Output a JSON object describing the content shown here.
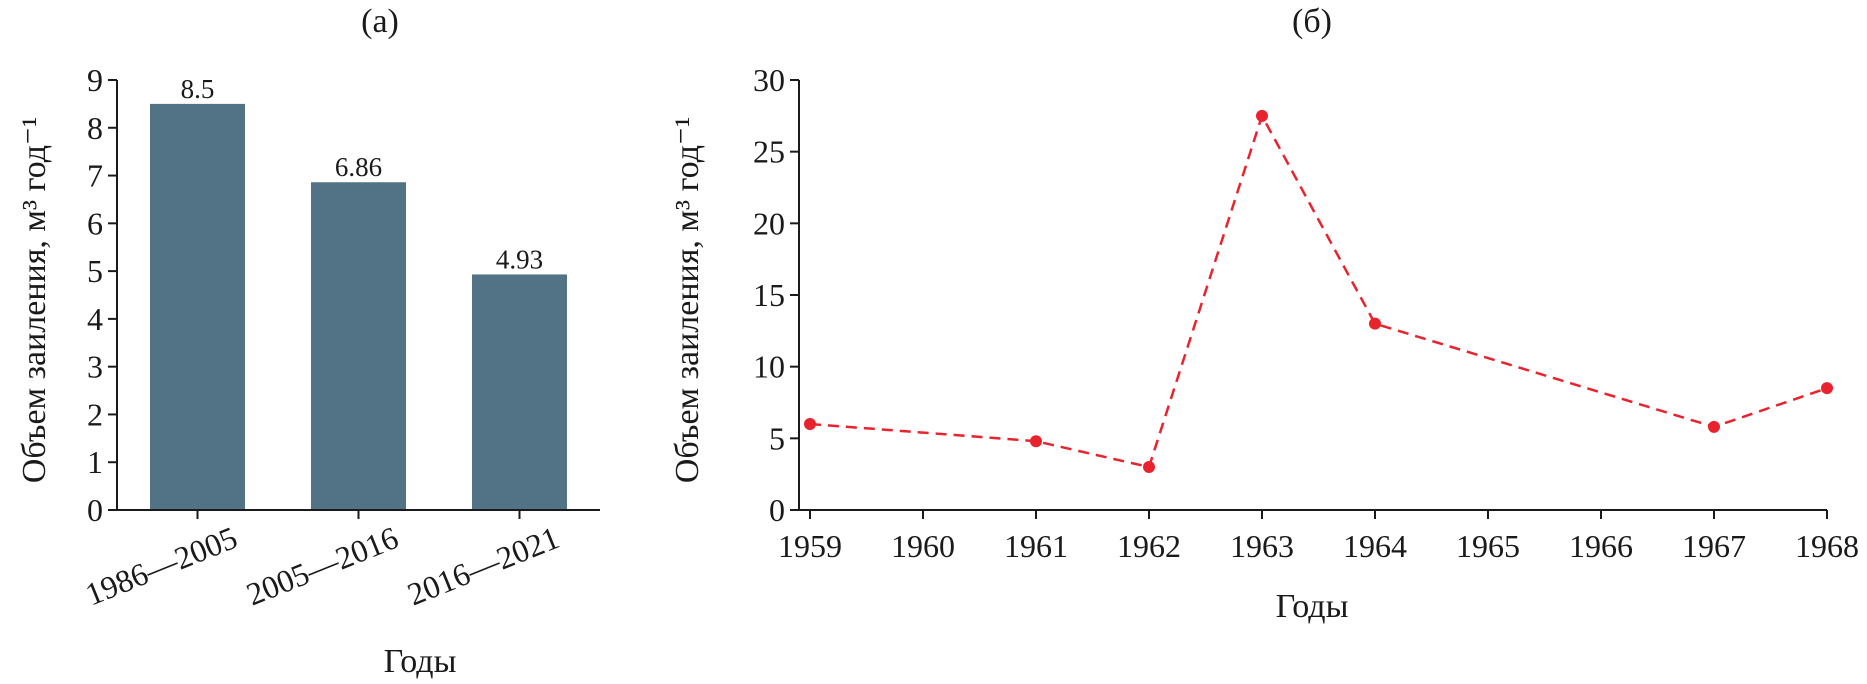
{
  "chart_data": [
    {
      "type": "bar",
      "panel_label": "(а)",
      "title": "",
      "xlabel": "Годы",
      "ylabel": "Объем заиления, м³ год⁻¹",
      "categories": [
        "1986—2005",
        "2005—2016",
        "2016—2021"
      ],
      "values": [
        8.5,
        6.86,
        4.93
      ],
      "data_labels": [
        "8.5",
        "6.86",
        "4.93"
      ],
      "yticks": [
        0,
        1,
        2,
        3,
        4,
        5,
        6,
        7,
        8,
        9
      ],
      "ylim": [
        0,
        9
      ],
      "bar_color": "#527285",
      "grid": false,
      "legend": "none"
    },
    {
      "type": "line",
      "panel_label": "(б)",
      "title": "",
      "xlabel": "Годы",
      "ylabel": "Объем заиления, м³ год⁻¹",
      "x": [
        1959,
        1961,
        1962,
        1963,
        1964,
        1967,
        1968
      ],
      "y": [
        6.0,
        4.8,
        3.0,
        27.5,
        13.0,
        5.8,
        8.5
      ],
      "xticks": [
        1959,
        1960,
        1961,
        1962,
        1963,
        1964,
        1965,
        1966,
        1967,
        1968
      ],
      "xlim": [
        1959,
        1968
      ],
      "yticks": [
        0,
        5,
        10,
        15,
        20,
        25,
        30
      ],
      "ylim": [
        0,
        30
      ],
      "line_style": "dashed",
      "color": "#e8232e",
      "grid": false,
      "legend": "none"
    }
  ]
}
